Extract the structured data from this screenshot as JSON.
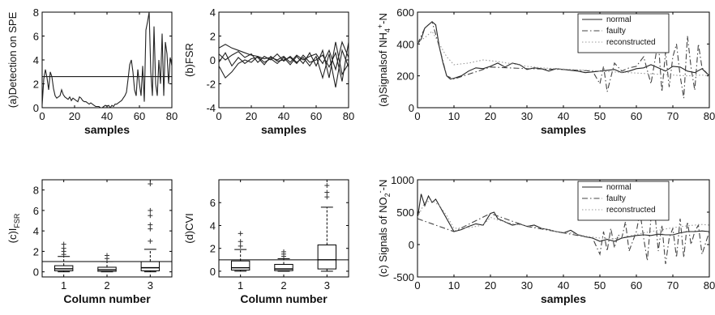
{
  "chart_data": [
    {
      "id": "spe",
      "type": "line",
      "xlabel": "samples",
      "ylabel": "(a)Detection on SPE",
      "xlim": [
        0,
        80
      ],
      "ylim": [
        0,
        8
      ],
      "xticks": [
        "0",
        "20",
        "40",
        "60",
        "80"
      ],
      "yticks": [
        "0",
        "2",
        "4",
        "6",
        "8"
      ],
      "threshold": 2.6,
      "series": [
        {
          "x": [
            0,
            1,
            2,
            3,
            4,
            5,
            6,
            7,
            8,
            9,
            10,
            11,
            12,
            13,
            14,
            15,
            16,
            17,
            18,
            19,
            20,
            21,
            22,
            23,
            24,
            25,
            26,
            27,
            28,
            29,
            30,
            31,
            32,
            33,
            34,
            35,
            36,
            37,
            38,
            39,
            40,
            41,
            42,
            43,
            44,
            45,
            46,
            47,
            48,
            49,
            50,
            51,
            52,
            53,
            54,
            55,
            56,
            57,
            58,
            59,
            60,
            61,
            62,
            63,
            64,
            65,
            66,
            67,
            68,
            69,
            70,
            71,
            72,
            73,
            74,
            75,
            76,
            77,
            78,
            79,
            80
          ],
          "y": [
            0.2,
            2.4,
            3.2,
            2.5,
            1.5,
            3.0,
            2.6,
            1.6,
            1.0,
            0.8,
            0.9,
            1.0,
            1.5,
            1.1,
            0.9,
            0.8,
            0.7,
            0.9,
            0.6,
            0.8,
            0.7,
            0.6,
            0.5,
            0.9,
            0.8,
            0.6,
            0.5,
            0.5,
            0.4,
            0.3,
            0.4,
            0.3,
            0.2,
            0.1,
            0.1,
            0.1,
            0.0,
            0.0,
            0.1,
            0.2,
            0.1,
            0.2,
            0.0,
            0.2,
            0.1,
            0.3,
            0.3,
            0.4,
            0.5,
            0.6,
            0.8,
            1.0,
            1.3,
            2.4,
            3.6,
            4.0,
            3.0,
            1.5,
            1.0,
            3.2,
            2.0,
            1.0,
            3.5,
            0.5,
            6.5,
            7.2,
            8.0,
            3.0,
            1.0,
            6.8,
            2.0,
            1.0,
            4.0,
            2.0,
            6.2,
            1.0,
            5.5,
            4.5,
            2.0,
            4.2,
            3.5
          ]
        }
      ]
    },
    {
      "id": "fsr",
      "type": "line",
      "xlabel": "samples",
      "ylabel": "(b)FSR",
      "xlim": [
        0,
        80
      ],
      "ylim": [
        -4,
        4
      ],
      "xticks": [
        "0",
        "20",
        "40",
        "60",
        "80"
      ],
      "yticks": [
        "-4",
        "-2",
        "0",
        "2",
        "4"
      ],
      "series": [
        {
          "x": [
            0,
            4,
            8,
            12,
            16,
            20,
            24,
            28,
            32,
            36,
            40,
            44,
            48,
            52,
            56,
            60,
            64,
            68,
            72,
            76,
            80
          ],
          "y": [
            1.0,
            1.3,
            1.0,
            0.8,
            0.6,
            0.4,
            0.3,
            0.1,
            0.2,
            0.0,
            0.3,
            -0.2,
            0.4,
            0.0,
            0.3,
            0.5,
            -0.3,
            0.8,
            -0.8,
            1.5,
            0.2
          ]
        },
        {
          "x": [
            0,
            4,
            8,
            12,
            16,
            20,
            24,
            28,
            32,
            36,
            40,
            44,
            48,
            52,
            56,
            60,
            64,
            68,
            72,
            76,
            80
          ],
          "y": [
            -0.5,
            -1.5,
            -1.0,
            -0.3,
            0.0,
            -0.2,
            0.3,
            -0.2,
            0.1,
            -0.3,
            0.2,
            -0.4,
            0.3,
            -0.3,
            0.6,
            -0.5,
            0.8,
            -1.5,
            1.5,
            -1.2,
            -0.3
          ]
        },
        {
          "x": [
            0,
            4,
            8,
            12,
            16,
            20,
            24,
            28,
            32,
            36,
            40,
            44,
            48,
            52,
            56,
            60,
            64,
            68,
            72,
            76,
            80
          ],
          "y": [
            0.5,
            0.0,
            0.4,
            0.7,
            0.2,
            0.5,
            -0.2,
            0.3,
            0.0,
            0.5,
            -0.1,
            0.3,
            -0.2,
            0.2,
            -0.5,
            0.3,
            -1.5,
            0.5,
            -2.3,
            0.8,
            -0.6
          ]
        },
        {
          "x": [
            0,
            4,
            8,
            12,
            16,
            20,
            24,
            28,
            32,
            36,
            40,
            44,
            48,
            52,
            56,
            60,
            64,
            68,
            72,
            76,
            80
          ],
          "y": [
            -0.2,
            0.6,
            -0.5,
            0.2,
            -0.3,
            0.1,
            0.2,
            -0.4,
            0.3,
            -0.1,
            0.0,
            0.2,
            -0.3,
            0.4,
            -0.2,
            0.0,
            0.4,
            -0.6,
            0.6,
            -1.8,
            1.5
          ]
        }
      ]
    },
    {
      "id": "nh4",
      "type": "line",
      "xlabel": "samples",
      "ylabel": "(a)Signalsof NH",
      "ylabel_sub": "4",
      "ylabel_sup": "+",
      "ylabel_tail": "-N",
      "xlim": [
        0,
        80
      ],
      "ylim": [
        0,
        600
      ],
      "xticks": [
        "0",
        "10",
        "20",
        "30",
        "40",
        "50",
        "60",
        "70",
        "80"
      ],
      "yticks": [
        "0",
        "200",
        "400",
        "600"
      ],
      "legend_position": "top-right",
      "series": [
        {
          "name": "normal",
          "style": "solid",
          "x": [
            0,
            1,
            2,
            3,
            4,
            5,
            6,
            7,
            8,
            9,
            10,
            12,
            14,
            16,
            18,
            20,
            22,
            24,
            26,
            28,
            30,
            32,
            34,
            36,
            38,
            40,
            42,
            44,
            46,
            48,
            50,
            52,
            54,
            56,
            58,
            60,
            62,
            64,
            66,
            68,
            70,
            72,
            74,
            76,
            78,
            80
          ],
          "y": [
            400,
            430,
            500,
            520,
            540,
            520,
            380,
            280,
            200,
            180,
            185,
            200,
            230,
            250,
            245,
            260,
            280,
            255,
            280,
            270,
            240,
            250,
            245,
            230,
            245,
            240,
            235,
            230,
            220,
            225,
            230,
            235,
            240,
            220,
            230,
            245,
            250,
            270,
            250,
            230,
            260,
            255,
            230,
            220,
            245,
            200
          ]
        },
        {
          "name": "faulty",
          "style": "dashdot",
          "x": [
            0,
            2,
            4,
            6,
            8,
            10,
            20,
            30,
            40,
            48,
            50,
            51,
            52,
            54,
            56,
            58,
            60,
            62,
            64,
            66,
            67,
            68,
            69,
            70,
            71,
            72,
            73,
            74,
            75,
            76,
            77,
            78,
            80
          ],
          "y": [
            400,
            500,
            540,
            380,
            200,
            180,
            255,
            245,
            240,
            230,
            150,
            260,
            100,
            280,
            230,
            250,
            260,
            320,
            150,
            420,
            100,
            350,
            130,
            320,
            400,
            200,
            60,
            450,
            250,
            110,
            400,
            250,
            200
          ]
        },
        {
          "name": "reconstructed",
          "style": "dotted",
          "x": [
            0,
            2,
            4,
            6,
            8,
            10,
            14,
            18,
            22,
            26,
            30,
            34,
            38,
            42,
            46,
            50,
            54,
            58,
            62,
            66,
            70,
            74,
            78,
            80
          ],
          "y": [
            410,
            440,
            480,
            400,
            320,
            270,
            280,
            300,
            290,
            275,
            260,
            250,
            245,
            240,
            235,
            230,
            225,
            220,
            215,
            210,
            205,
            200,
            205,
            200
          ]
        }
      ]
    },
    {
      "id": "no2",
      "type": "line",
      "xlabel": "samples",
      "ylabel": "(c) Signals of NO",
      "ylabel_sub": "2",
      "ylabel_sup": "-",
      "ylabel_tail": "-N",
      "xlim": [
        0,
        80
      ],
      "ylim": [
        -500,
        1000
      ],
      "xticks": [
        "0",
        "10",
        "20",
        "30",
        "40",
        "50",
        "60",
        "70",
        "80"
      ],
      "yticks": [
        "-500",
        "0",
        "500",
        "1000"
      ],
      "legend_position": "top-right",
      "series": [
        {
          "name": "normal",
          "style": "solid",
          "x": [
            0,
            1,
            2,
            3,
            4,
            5,
            6,
            8,
            10,
            12,
            14,
            16,
            18,
            20,
            21,
            22,
            24,
            26,
            28,
            30,
            32,
            34,
            36,
            38,
            40,
            42,
            44,
            46,
            48,
            50,
            52,
            54,
            56,
            58,
            60,
            62,
            64,
            66,
            68,
            70,
            72,
            74,
            76,
            78,
            80
          ],
          "y": [
            400,
            780,
            600,
            750,
            650,
            700,
            600,
            400,
            200,
            230,
            280,
            320,
            300,
            480,
            500,
            400,
            350,
            300,
            320,
            280,
            300,
            250,
            230,
            200,
            180,
            220,
            150,
            120,
            100,
            50,
            80,
            50,
            100,
            120,
            140,
            150,
            140,
            160,
            150,
            150,
            180,
            200,
            200,
            210,
            200
          ]
        },
        {
          "name": "faulty",
          "style": "dashdot",
          "x": [
            0,
            10,
            20,
            30,
            40,
            48,
            50,
            51,
            52,
            53,
            54,
            55,
            56,
            57,
            58,
            60,
            61,
            62,
            63,
            64,
            65,
            66,
            67,
            68,
            69,
            70,
            71,
            72,
            73,
            74,
            75,
            76,
            77,
            78,
            80
          ],
          "y": [
            400,
            200,
            480,
            280,
            180,
            100,
            -150,
            200,
            -100,
            250,
            -50,
            150,
            100,
            350,
            -100,
            200,
            500,
            100,
            -250,
            400,
            550,
            -100,
            300,
            -300,
            100,
            250,
            -200,
            400,
            -200,
            350,
            0,
            200,
            300,
            -150,
            200
          ]
        },
        {
          "name": "reconstructed",
          "style": "dotted",
          "x": [
            0,
            2,
            4,
            6,
            8,
            10,
            14,
            18,
            20,
            22,
            26,
            30,
            34,
            38,
            42,
            46,
            50,
            54,
            58,
            62,
            66,
            70,
            74,
            78,
            80
          ],
          "y": [
            420,
            650,
            680,
            600,
            450,
            250,
            260,
            300,
            420,
            380,
            320,
            290,
            250,
            200,
            180,
            130,
            100,
            90,
            130,
            180,
            220,
            260,
            290,
            310,
            300
          ]
        }
      ]
    },
    {
      "id": "fsr_box",
      "type": "box",
      "xlabel": "Column number",
      "ylabel": "(c)I",
      "ylabel_sub": "FSR",
      "ylim": [
        -0.5,
        9
      ],
      "xticks": [
        "1",
        "2",
        "3"
      ],
      "yticks": [
        "0",
        "2",
        "4",
        "6",
        "8"
      ],
      "threshold": 1.0,
      "boxes": [
        {
          "q1": 0.1,
          "median": 0.3,
          "q3": 0.6,
          "whisker_low": 0.0,
          "whisker_high": 1.5,
          "outliers": [
            1.7,
            2.0,
            2.3,
            2.7
          ]
        },
        {
          "q1": 0.05,
          "median": 0.2,
          "q3": 0.45,
          "whisker_low": 0.0,
          "whisker_high": 1.0,
          "outliers": [
            1.3,
            1.6
          ]
        },
        {
          "q1": 0.1,
          "median": 0.4,
          "q3": 1.0,
          "whisker_low": 0.0,
          "whisker_high": 2.2,
          "outliers": [
            3.0,
            4.2,
            4.6,
            5.5,
            6.0,
            8.6
          ]
        }
      ]
    },
    {
      "id": "cvi_box",
      "type": "box",
      "xlabel": "Column number",
      "ylabel": "(d)CVI",
      "ylim": [
        -0.5,
        8
      ],
      "xticks": [
        "1",
        "2",
        "3"
      ],
      "yticks": [
        "0",
        "2",
        "4",
        "6"
      ],
      "threshold": 1.0,
      "boxes": [
        {
          "q1": 0.1,
          "median": 0.3,
          "q3": 0.9,
          "whisker_low": 0.0,
          "whisker_high": 1.9,
          "outliers": [
            2.2,
            2.6,
            3.3
          ]
        },
        {
          "q1": 0.05,
          "median": 0.2,
          "q3": 0.6,
          "whisker_low": 0.0,
          "whisker_high": 1.1,
          "outliers": [
            1.3,
            1.5,
            1.7
          ]
        },
        {
          "q1": 0.2,
          "median": 1.0,
          "q3": 2.3,
          "whisker_low": 0.0,
          "whisker_high": 5.6,
          "outliers": [
            6.5,
            6.9,
            7.5
          ]
        }
      ]
    }
  ]
}
